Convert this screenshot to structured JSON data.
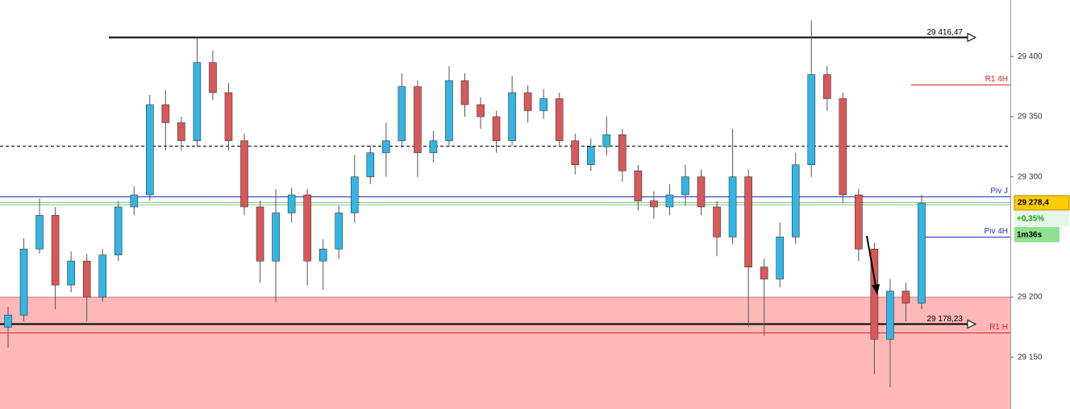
{
  "chart_data": {
    "type": "candlestick",
    "up_color": "#33b5e5",
    "down_color": "#d9585a",
    "ylim": [
      29107,
      29447
    ],
    "yticks": [
      {
        "value": 29150,
        "label": "29 150"
      },
      {
        "value": 29200,
        "label": "29 200"
      },
      {
        "value": 29300,
        "label": "29 300"
      },
      {
        "value": 29350,
        "label": "29 350"
      },
      {
        "value": 29400,
        "label": "29 400"
      }
    ],
    "open": [
      29175,
      29185,
      29240,
      29268,
      29210,
      29230,
      29200,
      29235,
      29275,
      29285,
      29360,
      29345,
      29330,
      29395,
      29370,
      29330,
      29275,
      29230,
      29270,
      29285,
      29230,
      29240,
      29270,
      29300,
      29320,
      29330,
      29375,
      29320,
      29330,
      29380,
      29360,
      29350,
      29330,
      29370,
      29355,
      29365,
      29330,
      29310,
      29325,
      29335,
      29305,
      29280,
      29275,
      29285,
      29300,
      29275,
      29250,
      29300,
      29225,
      29215,
      29250,
      29310,
      29385,
      29365,
      29285,
      29240,
      29165,
      29205,
      29195
    ],
    "high": [
      29192,
      29249,
      29282,
      29275,
      29238,
      29236,
      29240,
      29280,
      29292,
      29368,
      29372,
      29350,
      29416,
      29405,
      29378,
      29336,
      29280,
      29290,
      29291,
      29290,
      29248,
      29276,
      29318,
      29326,
      29345,
      29386,
      29380,
      29338,
      29392,
      29386,
      29366,
      29355,
      29384,
      29376,
      29373,
      29370,
      29336,
      29332,
      29350,
      29340,
      29310,
      29288,
      29294,
      29310,
      29306,
      29280,
      29340,
      29306,
      29232,
      29262,
      29320,
      29430,
      29392,
      29370,
      29290,
      29245,
      29215,
      29212,
      29285
    ],
    "low": [
      29158,
      29180,
      29236,
      29190,
      29204,
      29180,
      29196,
      29230,
      29268,
      29280,
      29322,
      29322,
      29325,
      29364,
      29322,
      29268,
      29212,
      29196,
      29262,
      29210,
      29206,
      29232,
      29262,
      29294,
      29300,
      29324,
      29300,
      29312,
      29325,
      29350,
      29340,
      29320,
      29326,
      29345,
      29348,
      29325,
      29302,
      29305,
      29318,
      29296,
      29272,
      29265,
      29268,
      29276,
      29268,
      29234,
      29244,
      29175,
      29168,
      29208,
      29244,
      29300,
      29355,
      29278,
      29230,
      29136,
      29125,
      29180,
      29190
    ],
    "close": [
      29185,
      29240,
      29268,
      29210,
      29230,
      29200,
      29235,
      29275,
      29285,
      29360,
      29345,
      29330,
      29395,
      29370,
      29330,
      29275,
      29230,
      29270,
      29285,
      29230,
      29240,
      29270,
      29300,
      29320,
      29330,
      29375,
      29320,
      29330,
      29380,
      29360,
      29350,
      29330,
      29370,
      29355,
      29365,
      29330,
      29310,
      29325,
      29335,
      29305,
      29280,
      29275,
      29285,
      29300,
      29275,
      29250,
      29300,
      29225,
      29215,
      29250,
      29310,
      29385,
      29365,
      29285,
      29240,
      29165,
      29205,
      29195,
      29278
    ],
    "zone": {
      "from": 29200,
      "to": 29107,
      "color": "#ffb8b8"
    },
    "levels": [
      {
        "value": 29416.47,
        "value_label": "29 416,47",
        "color": "#000000"
      },
      {
        "value": 29178.23,
        "value_label": "29 178,23",
        "color": "#000000"
      },
      {
        "name": "R1 4H",
        "value": 29376.6,
        "color": "#e02020"
      },
      {
        "value": 29325.7,
        "color": "#000000",
        "dashed": true
      },
      {
        "name": "Piv J",
        "value": 29283.5,
        "color": "#2030c0"
      },
      {
        "value": 29279.3,
        "color": "#88cc88"
      },
      {
        "value": 29277.2,
        "color": "#88cc88"
      },
      {
        "name": "Piv 4H",
        "value": 29250.1,
        "color": "#2030c0"
      },
      {
        "name": "R1 H",
        "value": 29170.4,
        "color": "#e02020"
      }
    ],
    "last": {
      "value": 29278.4,
      "value_label": "29 278,4",
      "change": 0.35,
      "change_label": "+0,35%",
      "timer": "1m36s"
    }
  }
}
